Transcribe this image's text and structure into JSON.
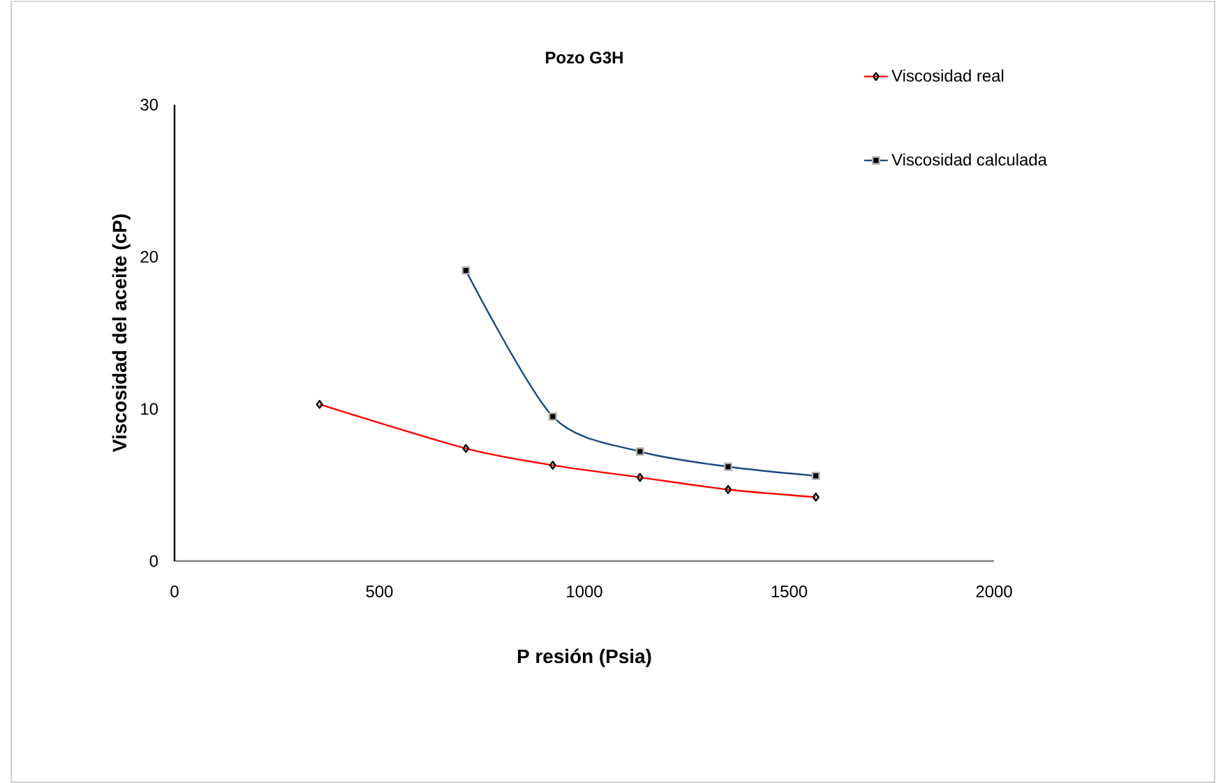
{
  "chart_data": {
    "type": "line",
    "title": "Pozo G3H",
    "xlabel": "P resión (Psia)",
    "ylabel": "Viscosidad  del aceite  (cP)",
    "xlim": [
      0,
      2000
    ],
    "xticks": [
      0,
      500,
      1000,
      1500,
      2000
    ],
    "ylim": [
      0,
      30
    ],
    "yticks": [
      0,
      10,
      20,
      30
    ],
    "grid": false,
    "legend": "top right",
    "line_style": "solid",
    "series": [
      {
        "name": "Viscosidad real",
        "color": "#ff0000",
        "marker": "diamond",
        "x": [
          354,
          711,
          923,
          1136,
          1351,
          1565
        ],
        "values": [
          10.3,
          7.4,
          6.3,
          5.5,
          4.7,
          4.2
        ]
      },
      {
        "name": "Viscosidad calculada",
        "color": "#1f497d",
        "marker": "square",
        "x": [
          711,
          923,
          1136,
          1351,
          1565
        ],
        "values": [
          19.1,
          9.5,
          7.2,
          6.2,
          5.6
        ]
      }
    ]
  }
}
